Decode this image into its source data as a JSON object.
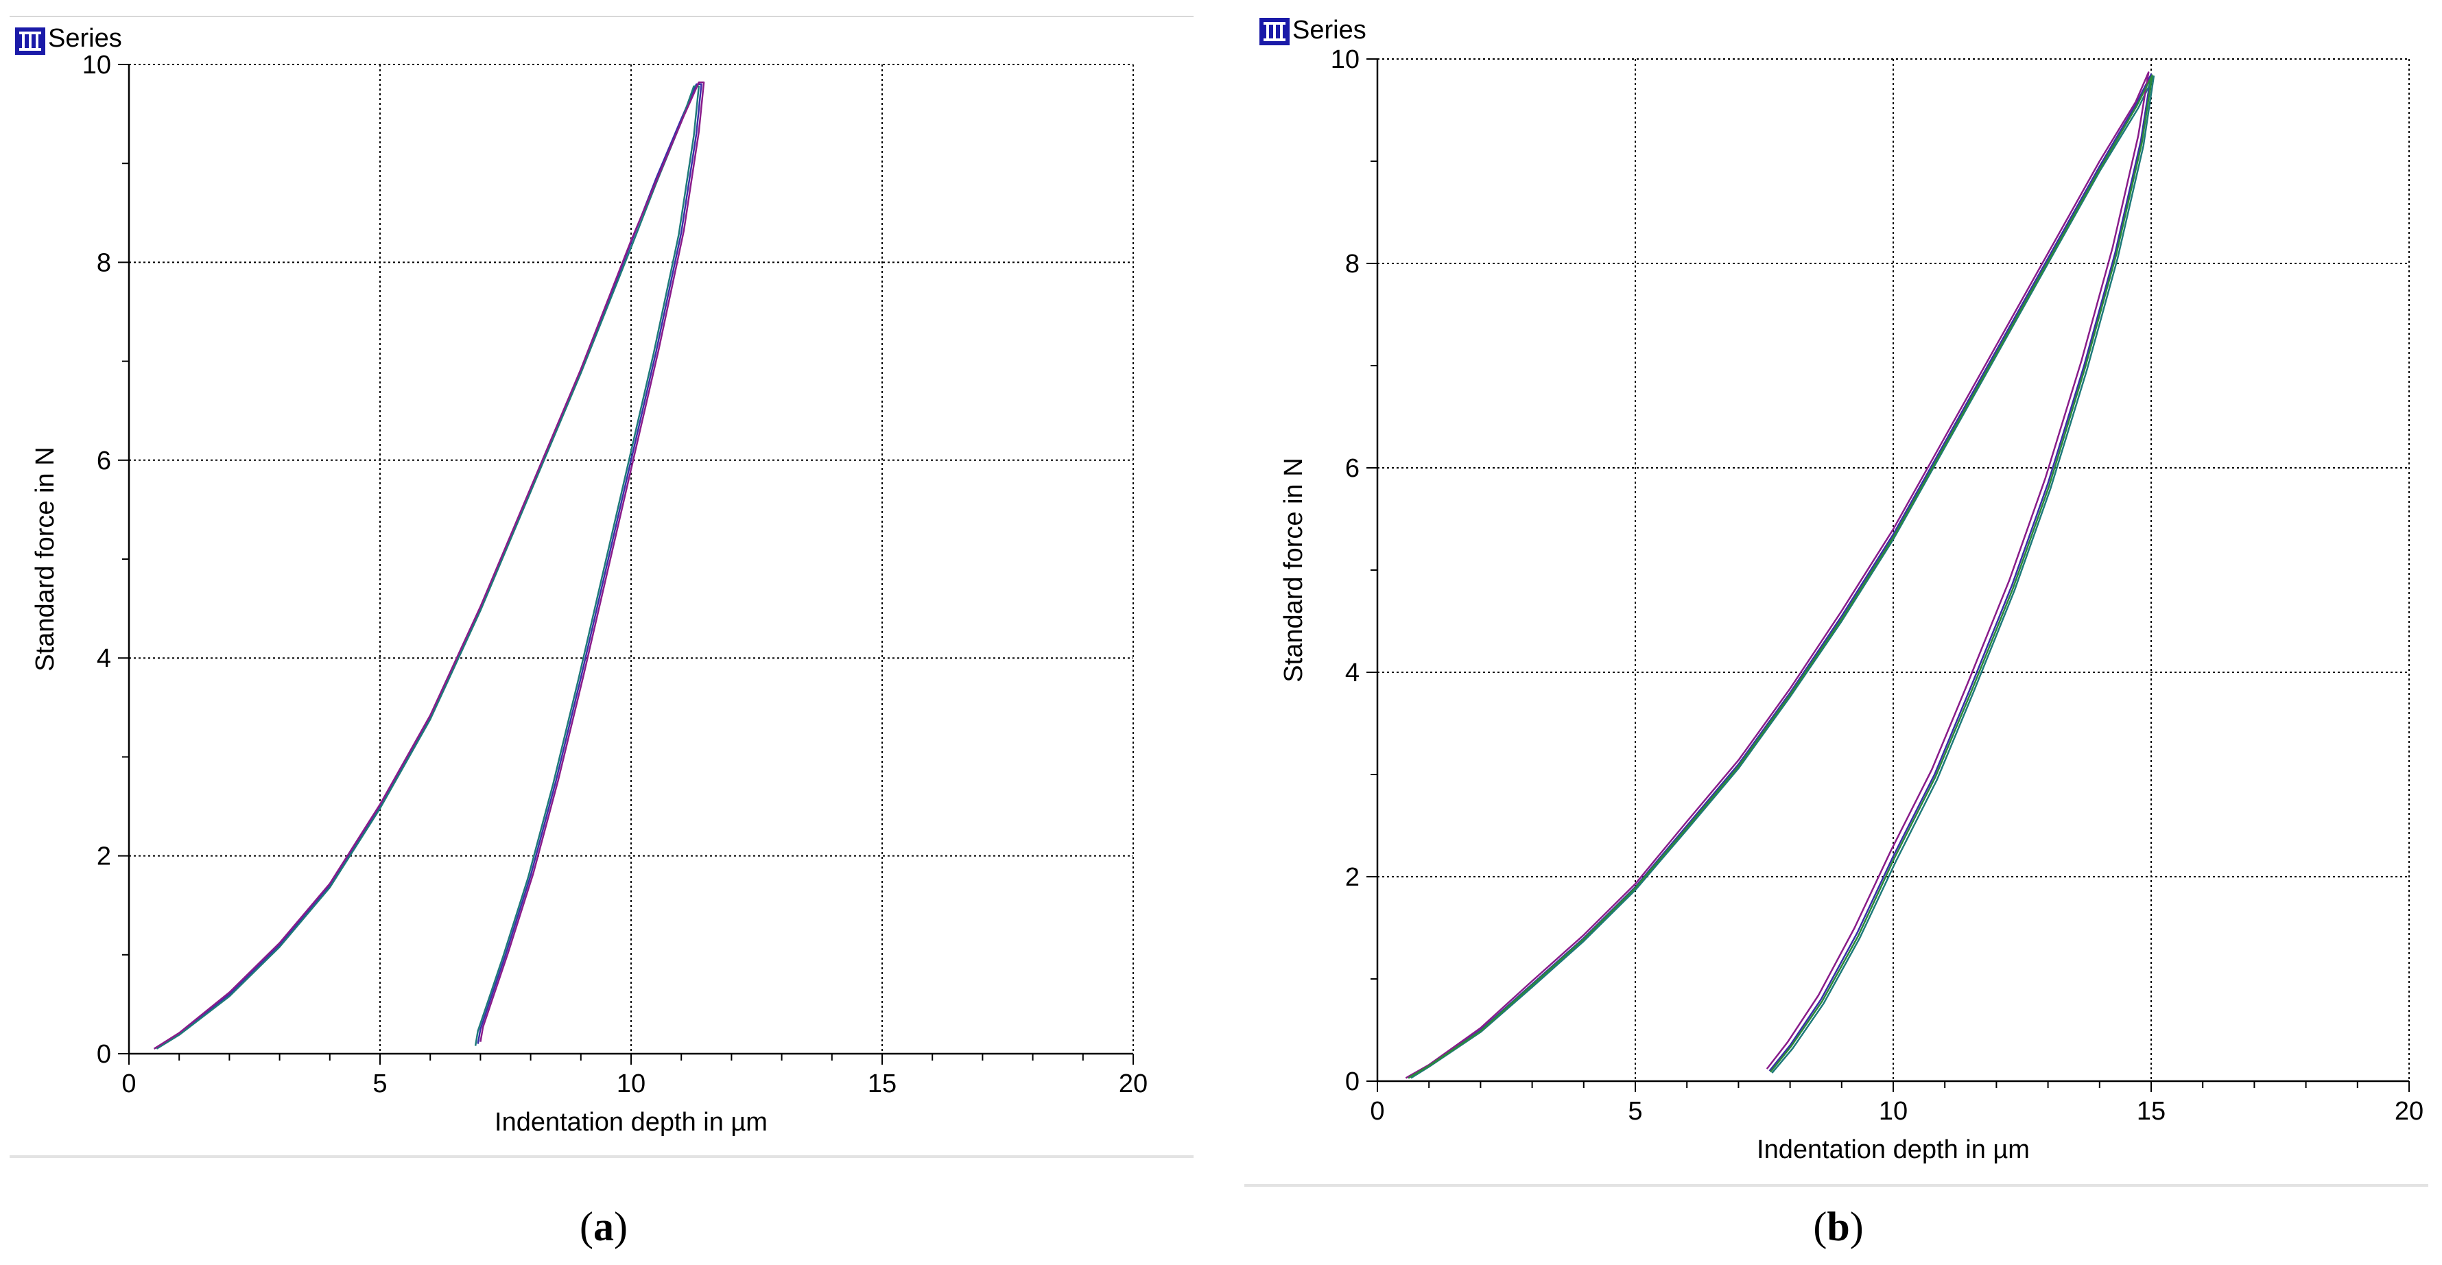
{
  "panels": [
    {
      "series_label": "Series",
      "caption_letter": "a",
      "caption_open": "(",
      "caption_close": ")"
    },
    {
      "series_label": "Series",
      "caption_letter": "b",
      "caption_open": "(",
      "caption_close": ")"
    }
  ],
  "icons": {
    "series": "series-icon"
  },
  "colors": {
    "series": [
      "#3a2fa8",
      "#1e7a7a",
      "#8a1c8a",
      "#2a8a3a",
      "#1a3ab0"
    ],
    "axis": "#000000",
    "grid": "#000000"
  },
  "chart_data": [
    {
      "type": "line",
      "xlabel": "Indentation depth in µm",
      "ylabel": "Standard force in N",
      "xlim": [
        0,
        20
      ],
      "ylim": [
        0,
        10
      ],
      "xticks": [
        "0",
        "5",
        "10",
        "15",
        "20"
      ],
      "yticks": [
        "0",
        "2",
        "4",
        "6",
        "8",
        "10"
      ],
      "grid": true,
      "series": [
        {
          "x": [
            0.5,
            1,
            2,
            3,
            4,
            5,
            6,
            7,
            8,
            9,
            10,
            10.5,
            11,
            11.3,
            11.4,
            11.3,
            11,
            10.5,
            10,
            9.5,
            9,
            8.5,
            8,
            7.5,
            7.2,
            7.0,
            6.95
          ],
          "y": [
            0.05,
            0.2,
            0.6,
            1.1,
            1.7,
            2.5,
            3.4,
            4.5,
            5.7,
            6.9,
            8.2,
            8.85,
            9.45,
            9.8,
            9.8,
            9.3,
            8.3,
            7.1,
            6.0,
            4.9,
            3.8,
            2.75,
            1.8,
            1.0,
            0.55,
            0.25,
            0.1
          ]
        },
        {
          "x": [
            0.55,
            1,
            2,
            3,
            4,
            5,
            6,
            7,
            8,
            9,
            10,
            10.5,
            11,
            11.25,
            11.35,
            11.25,
            10.95,
            10.45,
            9.95,
            9.45,
            8.95,
            8.45,
            7.95,
            7.45,
            7.15,
            6.95,
            6.9
          ],
          "y": [
            0.05,
            0.19,
            0.58,
            1.08,
            1.68,
            2.48,
            3.38,
            4.48,
            5.68,
            6.88,
            8.15,
            8.8,
            9.42,
            9.78,
            9.78,
            9.28,
            8.28,
            7.08,
            5.98,
            4.88,
            3.78,
            2.73,
            1.78,
            0.98,
            0.53,
            0.23,
            0.08
          ]
        },
        {
          "x": [
            0.5,
            1,
            2,
            3,
            4,
            5,
            6,
            7,
            8,
            9,
            10,
            10.55,
            11.05,
            11.35,
            11.45,
            11.35,
            11.05,
            10.55,
            10.05,
            9.55,
            9.05,
            8.55,
            8.05,
            7.55,
            7.25,
            7.05,
            7.0
          ],
          "y": [
            0.05,
            0.21,
            0.62,
            1.12,
            1.72,
            2.52,
            3.42,
            4.52,
            5.72,
            6.92,
            8.22,
            8.88,
            9.48,
            9.82,
            9.82,
            9.32,
            8.32,
            7.12,
            6.02,
            4.92,
            3.82,
            2.77,
            1.82,
            1.02,
            0.57,
            0.27,
            0.12
          ]
        }
      ]
    },
    {
      "type": "line",
      "xlabel": "Indentation depth in µm",
      "ylabel": "Standard force in N",
      "xlim": [
        0,
        20
      ],
      "ylim": [
        0,
        10
      ],
      "xticks": [
        "0",
        "5",
        "10",
        "15",
        "20"
      ],
      "yticks": [
        "0",
        "2",
        "4",
        "6",
        "8",
        "10"
      ],
      "grid": true,
      "series": [
        {
          "x": [
            0.6,
            1,
            2,
            3,
            4,
            5,
            6,
            7,
            8,
            9,
            10,
            11,
            12,
            13,
            14,
            14.7,
            15.0,
            14.8,
            14.3,
            13.7,
            13,
            12.3,
            11.5,
            10.8,
            10,
            9.3,
            8.6,
            8.0,
            7.6
          ],
          "y": [
            0.03,
            0.15,
            0.5,
            0.95,
            1.4,
            1.9,
            2.5,
            3.1,
            3.8,
            4.55,
            5.35,
            6.25,
            7.15,
            8.05,
            8.95,
            9.55,
            9.85,
            9.2,
            8.1,
            7.0,
            5.85,
            4.85,
            3.85,
            3.0,
            2.2,
            1.45,
            0.8,
            0.35,
            0.1
          ]
        },
        {
          "x": [
            0.65,
            1,
            2,
            3,
            4,
            5,
            6,
            7,
            8,
            9,
            10,
            11,
            12,
            13,
            14,
            14.75,
            15.05,
            14.85,
            14.35,
            13.75,
            13.05,
            12.35,
            11.55,
            10.85,
            10.05,
            9.35,
            8.65,
            8.05,
            7.65
          ],
          "y": [
            0.03,
            0.14,
            0.48,
            0.92,
            1.37,
            1.87,
            2.46,
            3.06,
            3.76,
            4.5,
            5.3,
            6.2,
            7.1,
            8.0,
            8.9,
            9.52,
            9.83,
            9.15,
            8.05,
            6.95,
            5.8,
            4.8,
            3.8,
            2.95,
            2.15,
            1.4,
            0.76,
            0.32,
            0.08
          ]
        },
        {
          "x": [
            0.55,
            1,
            2,
            3,
            4,
            5,
            6,
            7,
            8,
            9,
            10,
            11,
            12,
            13,
            14,
            14.7,
            14.95,
            14.75,
            14.25,
            13.65,
            12.95,
            12.25,
            11.45,
            10.75,
            9.95,
            9.25,
            8.55,
            7.95,
            7.55
          ],
          "y": [
            0.03,
            0.16,
            0.52,
            0.98,
            1.43,
            1.93,
            2.54,
            3.14,
            3.84,
            4.6,
            5.4,
            6.3,
            7.2,
            8.1,
            9.0,
            9.58,
            9.87,
            9.25,
            8.15,
            7.05,
            5.9,
            4.9,
            3.9,
            3.05,
            2.25,
            1.5,
            0.84,
            0.38,
            0.12
          ]
        },
        {
          "x": [
            0.6,
            1,
            2,
            3,
            4,
            5,
            6,
            7,
            8,
            9,
            10,
            11,
            12,
            13,
            14,
            14.72,
            15.02,
            14.82,
            14.32,
            13.72,
            13.02,
            12.32,
            11.52,
            10.82,
            10.02,
            9.32,
            8.62,
            8.02,
            7.62
          ],
          "y": [
            0.03,
            0.15,
            0.49,
            0.94,
            1.39,
            1.89,
            2.48,
            3.08,
            3.78,
            4.52,
            5.32,
            6.22,
            7.12,
            8.02,
            8.92,
            9.54,
            9.84,
            9.18,
            8.08,
            6.98,
            5.82,
            4.82,
            3.82,
            2.98,
            2.18,
            1.42,
            0.78,
            0.34,
            0.09
          ]
        }
      ]
    }
  ]
}
